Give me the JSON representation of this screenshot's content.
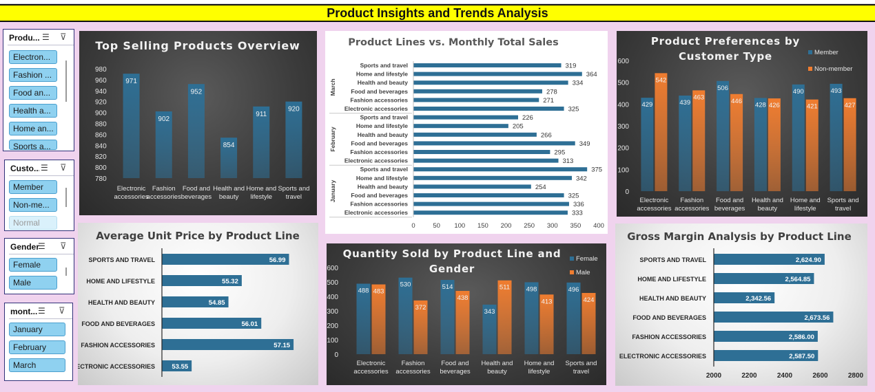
{
  "dashboard": {
    "title": "Product Insights and Trends Analysis"
  },
  "colors": {
    "blue": "#2e6f95",
    "orange": "#f07d30",
    "title_yellow": "#ffff00",
    "background": "#f0d3ee"
  },
  "slicers": [
    {
      "title": "Produ...",
      "items": [
        "Electron...",
        "Fashion ...",
        "Food an...",
        "Health a...",
        "Home an...",
        "Sports a..."
      ]
    },
    {
      "title": "Custo...",
      "items": [
        "Member",
        "Non-me...",
        "Normal"
      ]
    },
    {
      "title": "Gender",
      "items": [
        "Female",
        "Male"
      ]
    },
    {
      "title": "mont...",
      "items": [
        "January",
        "February",
        "March"
      ]
    }
  ],
  "chart_data": [
    {
      "id": "top_selling",
      "type": "bar",
      "title": "Top Selling Products Overview",
      "categories": [
        [
          "Electronic",
          "accessories"
        ],
        [
          "Fashion",
          "accessories"
        ],
        [
          "Food and",
          "beverages"
        ],
        [
          "Health and",
          "beauty"
        ],
        [
          "Home and",
          "lifestyle"
        ],
        [
          "Sports and",
          "travel"
        ]
      ],
      "values": [
        971,
        902,
        952,
        854,
        911,
        920
      ],
      "yticks": [
        "980",
        "960",
        "940",
        "920",
        "900",
        "880",
        "860",
        "840",
        "820",
        "800",
        "780"
      ],
      "ylim": [
        780,
        980
      ],
      "color": "#2e6f95",
      "grid": false
    },
    {
      "id": "monthly_sales",
      "type": "bar",
      "orientation": "horizontal",
      "title": "Product Lines vs. Monthly Total Sales",
      "groups": [
        {
          "name": "March",
          "categories": [
            "Sports and travel",
            "Home and lifestyle",
            "Health and beauty",
            "Food and beverages",
            "Fashion accessories",
            "Electronic accessories"
          ],
          "values": [
            319,
            364,
            334,
            278,
            271,
            325
          ]
        },
        {
          "name": "February",
          "categories": [
            "Sports and travel",
            "Home and lifestyle",
            "Health and beauty",
            "Food and beverages",
            "Fashion accessories",
            "Electronic accessories"
          ],
          "values": [
            226,
            205,
            266,
            349,
            295,
            313
          ]
        },
        {
          "name": "January",
          "categories": [
            "Sports and travel",
            "Home and lifestyle",
            "Health and beauty",
            "Food and beverages",
            "Fashion accessories",
            "Electronic accessories"
          ],
          "values": [
            375,
            342,
            254,
            325,
            336,
            333
          ]
        }
      ],
      "xticks": [
        "0",
        "50",
        "100",
        "150",
        "200",
        "250",
        "300",
        "350",
        "400"
      ],
      "xlim": [
        0,
        400
      ],
      "color": "#2e6f95",
      "grid": false
    },
    {
      "id": "customer_pref",
      "type": "bar",
      "title": [
        "Product Preferences by",
        "Customer Type"
      ],
      "categories": [
        [
          "Electronic",
          "accessories"
        ],
        [
          "Fashion",
          "accessories"
        ],
        [
          "Food and",
          "beverages"
        ],
        [
          "Health and",
          "beauty"
        ],
        [
          "Home and",
          "lifestyle"
        ],
        [
          "Sports and",
          "travel"
        ]
      ],
      "series": [
        {
          "name": "Member",
          "color": "#2e6f95",
          "values": [
            429,
            439,
            506,
            428,
            490,
            493
          ]
        },
        {
          "name": "Non-member",
          "color": "#f07d30",
          "values": [
            542,
            463,
            446,
            426,
            421,
            427
          ]
        }
      ],
      "yticks": [
        "600",
        "500",
        "400",
        "300",
        "200",
        "100",
        "0"
      ],
      "ylim": [
        0,
        600
      ],
      "legend": "top-right",
      "grid": false
    },
    {
      "id": "avg_price",
      "type": "bar",
      "orientation": "horizontal",
      "title": "Average Unit Price by Product Line",
      "categories": [
        "SPORTS AND TRAVEL",
        "HOME AND LIFESTYLE",
        "HEALTH AND BEAUTY",
        "FOOD AND BEVERAGES",
        "FASHION ACCESSORIES",
        "ELECTRONIC ACCESSORIES"
      ],
      "values": [
        56.99,
        55.32,
        54.85,
        56.01,
        57.15,
        53.55
      ],
      "labels": [
        "56.99",
        "55.32",
        "54.85",
        "56.01",
        "57.15",
        "53.55"
      ],
      "xlim": [
        52.5,
        58
      ],
      "color": "#2e6f95",
      "grid": false
    },
    {
      "id": "qty_gender",
      "type": "bar",
      "title": [
        "Quantity Sold by Product Line and",
        "Gender"
      ],
      "categories": [
        [
          "Electronic",
          "accessories"
        ],
        [
          "Fashion",
          "accessories"
        ],
        [
          "Food and",
          "beverages"
        ],
        [
          "Health and",
          "beauty"
        ],
        [
          "Home and",
          "lifestyle"
        ],
        [
          "Sports and",
          "travel"
        ]
      ],
      "series": [
        {
          "name": "Female",
          "color": "#2e6f95",
          "values": [
            488,
            530,
            514,
            343,
            498,
            496
          ]
        },
        {
          "name": "Male",
          "color": "#f07d30",
          "values": [
            483,
            372,
            438,
            511,
            413,
            424
          ]
        }
      ],
      "yticks": [
        "600",
        "500",
        "400",
        "300",
        "200",
        "100",
        "0"
      ],
      "ylim": [
        0,
        600
      ],
      "legend": "top-right",
      "grid": false
    },
    {
      "id": "gross_margin",
      "type": "bar",
      "orientation": "horizontal",
      "title": "Gross Margin Analysis by Product Line",
      "categories": [
        "SPORTS AND TRAVEL",
        "HOME AND LIFESTYLE",
        "HEALTH AND BEAUTY",
        "FOOD AND BEVERAGES",
        "FASHION ACCESSORIES",
        "ELECTRONIC ACCESSORIES"
      ],
      "values": [
        2624.9,
        2564.85,
        2342.56,
        2673.56,
        2586.0,
        2587.5
      ],
      "labels": [
        "2,624.90",
        "2,564.85",
        "2,342.56",
        "2,673.56",
        "2,586.00",
        "2,587.50"
      ],
      "xticks": [
        "2000",
        "2200",
        "2400",
        "2600",
        "2800"
      ],
      "xlim": [
        2000,
        2800
      ],
      "color": "#2e6f95",
      "grid": false
    }
  ]
}
